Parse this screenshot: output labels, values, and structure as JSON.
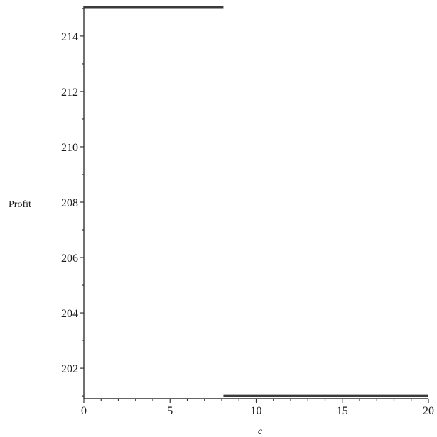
{
  "chart_data": {
    "type": "line",
    "title": "",
    "xlabel": "c",
    "ylabel": "Profit",
    "xlim": [
      0,
      20
    ],
    "ylim": [
      200.9,
      215.1
    ],
    "xticks": [
      0,
      5,
      10,
      15,
      20
    ],
    "xtick_labels": [
      "0",
      "5",
      "10",
      "15",
      "20"
    ],
    "xminor_step": 1,
    "yticks": [
      202,
      204,
      206,
      208,
      210,
      212,
      214
    ],
    "ytick_labels": [
      "202",
      "204",
      "206",
      "208",
      "210",
      "212",
      "214"
    ],
    "yminor_step": 1,
    "grid": false,
    "series": [
      {
        "color": "#3a3a3a",
        "segments": [
          {
            "x": [
              0,
              8.1
            ],
            "y": [
              215.05,
              215.05
            ]
          },
          {
            "x": [
              8.1,
              20
            ],
            "y": [
              201.0,
              201.0
            ]
          }
        ]
      }
    ]
  }
}
